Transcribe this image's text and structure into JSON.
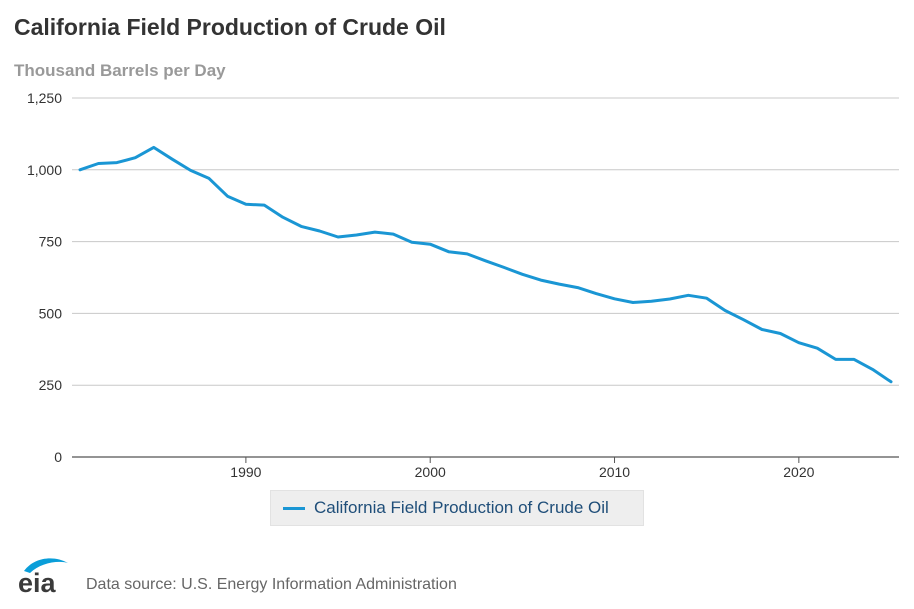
{
  "title": "California Field Production of Crude Oil",
  "subtitle": "Thousand Barrels per Day",
  "source": "Data source: U.S. Energy Information Administration",
  "logo_text": "eia",
  "colors": {
    "series": "#1a96d4",
    "grid": "#c8c8c8",
    "logo": "#0a9ed9"
  },
  "chart_data": {
    "type": "line",
    "title": "California Field Production of Crude Oil",
    "ylabel": "Thousand Barrels per Day",
    "xlabel": "",
    "xlim": [
      1981,
      2025
    ],
    "ylim": [
      0,
      1250
    ],
    "x_ticks": [
      1990,
      2000,
      2010,
      2020
    ],
    "y_ticks": [
      0,
      250,
      500,
      750,
      1000,
      1250
    ],
    "y_tick_labels": [
      "0",
      "250",
      "500",
      "750",
      "1,000",
      "1,250"
    ],
    "grid": true,
    "legend_position": "bottom-center",
    "series": [
      {
        "name": "California Field Production of Crude Oil",
        "color": "#1a96d4",
        "x": [
          1981,
          1982,
          1983,
          1984,
          1985,
          1986,
          1987,
          1988,
          1989,
          1990,
          1991,
          1992,
          1993,
          1994,
          1995,
          1996,
          1997,
          1998,
          1999,
          2000,
          2001,
          2002,
          2003,
          2004,
          2005,
          2006,
          2007,
          2008,
          2009,
          2010,
          2011,
          2012,
          2013,
          2014,
          2015,
          2016,
          2017,
          2018,
          2019,
          2020,
          2021,
          2022,
          2023,
          2024,
          2025
        ],
        "y": [
          1000,
          1022,
          1025,
          1042,
          1078,
          1037,
          998,
          970,
          908,
          880,
          877,
          835,
          803,
          787,
          766,
          773,
          783,
          776,
          748,
          741,
          715,
          707,
          683,
          660,
          636,
          616,
          602,
          590,
          569,
          551,
          538,
          542,
          550,
          563,
          553,
          510,
          478,
          444,
          430,
          398,
          379,
          340,
          340,
          305,
          262
        ]
      }
    ]
  }
}
